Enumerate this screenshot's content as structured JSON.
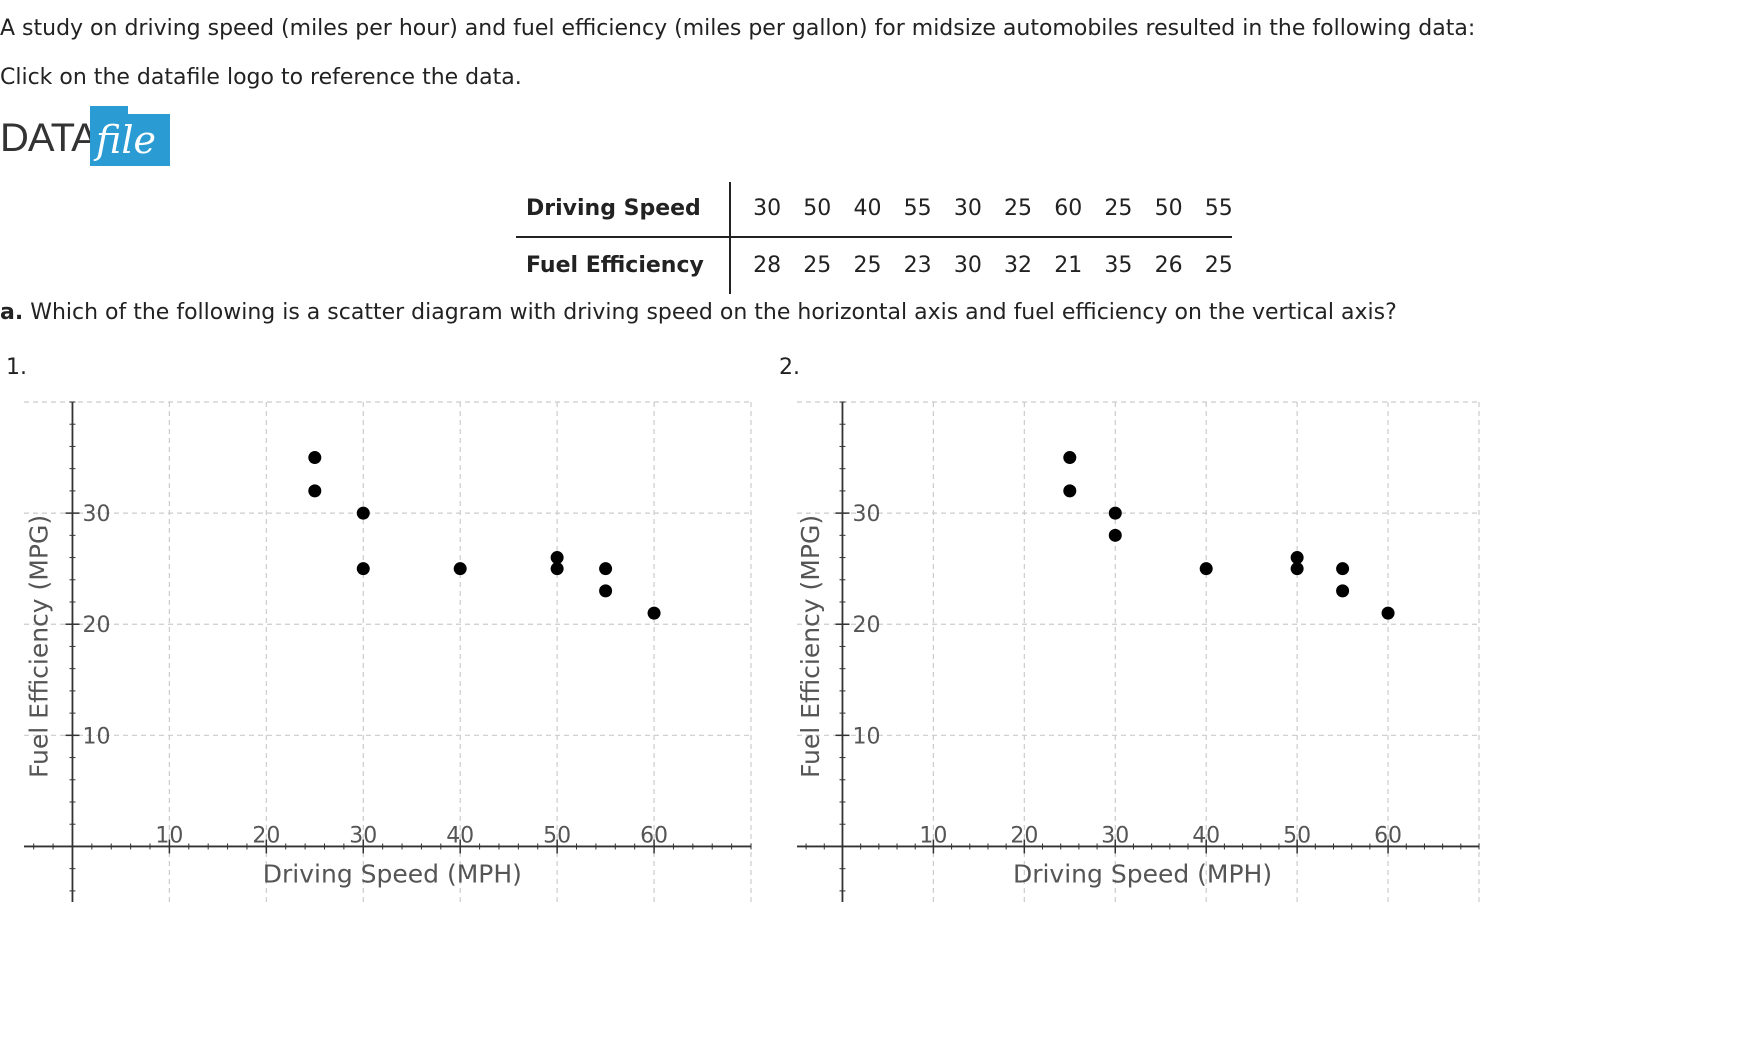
{
  "intro": "A study on driving speed (miles per hour) and fuel efficiency (miles per gallon) for midsize automobiles resulted in the following data:",
  "instruction": "Click on the datafile logo to reference the data.",
  "logo": {
    "word1": "DATA",
    "word2": "file",
    "color": "#2b9bd3"
  },
  "table": {
    "row1_label": "Driving Speed",
    "row2_label": "Fuel Efficiency",
    "speed": [
      30,
      50,
      40,
      55,
      30,
      25,
      60,
      25,
      50,
      55
    ],
    "efficiency": [
      28,
      25,
      25,
      23,
      30,
      32,
      21,
      35,
      26,
      25
    ]
  },
  "question": {
    "part": "a.",
    "text": "Which of the following is a scatter diagram with driving speed on the horizontal axis and fuel efficiency on the vertical axis?"
  },
  "options": [
    "1.",
    "2."
  ],
  "chart_data": [
    {
      "type": "scatter",
      "title": "",
      "xlabel": "Driving Speed (MPH)",
      "ylabel": "Fuel Efficiency (MPG)",
      "xlim": [
        -5,
        70
      ],
      "ylim": [
        -5,
        40
      ],
      "xticks": [
        10,
        20,
        30,
        40,
        50,
        60
      ],
      "yticks": [
        10,
        20,
        30
      ],
      "grid": true,
      "x": [
        25,
        25,
        30,
        30,
        40,
        50,
        50,
        55,
        55,
        60
      ],
      "y": [
        35,
        32,
        30,
        25,
        25,
        26,
        25,
        25,
        23,
        21
      ]
    },
    {
      "type": "scatter",
      "title": "",
      "xlabel": "Driving Speed (MPH)",
      "ylabel": "Fuel Efficiency (MPG)",
      "xlim": [
        -5,
        70
      ],
      "ylim": [
        -5,
        40
      ],
      "xticks": [
        10,
        20,
        30,
        40,
        50,
        60
      ],
      "yticks": [
        10,
        20,
        30
      ],
      "grid": true,
      "x": [
        25,
        25,
        30,
        30,
        40,
        50,
        50,
        55,
        55,
        60
      ],
      "y": [
        35,
        32,
        30,
        28,
        25,
        26,
        25,
        25,
        23,
        21
      ]
    }
  ]
}
